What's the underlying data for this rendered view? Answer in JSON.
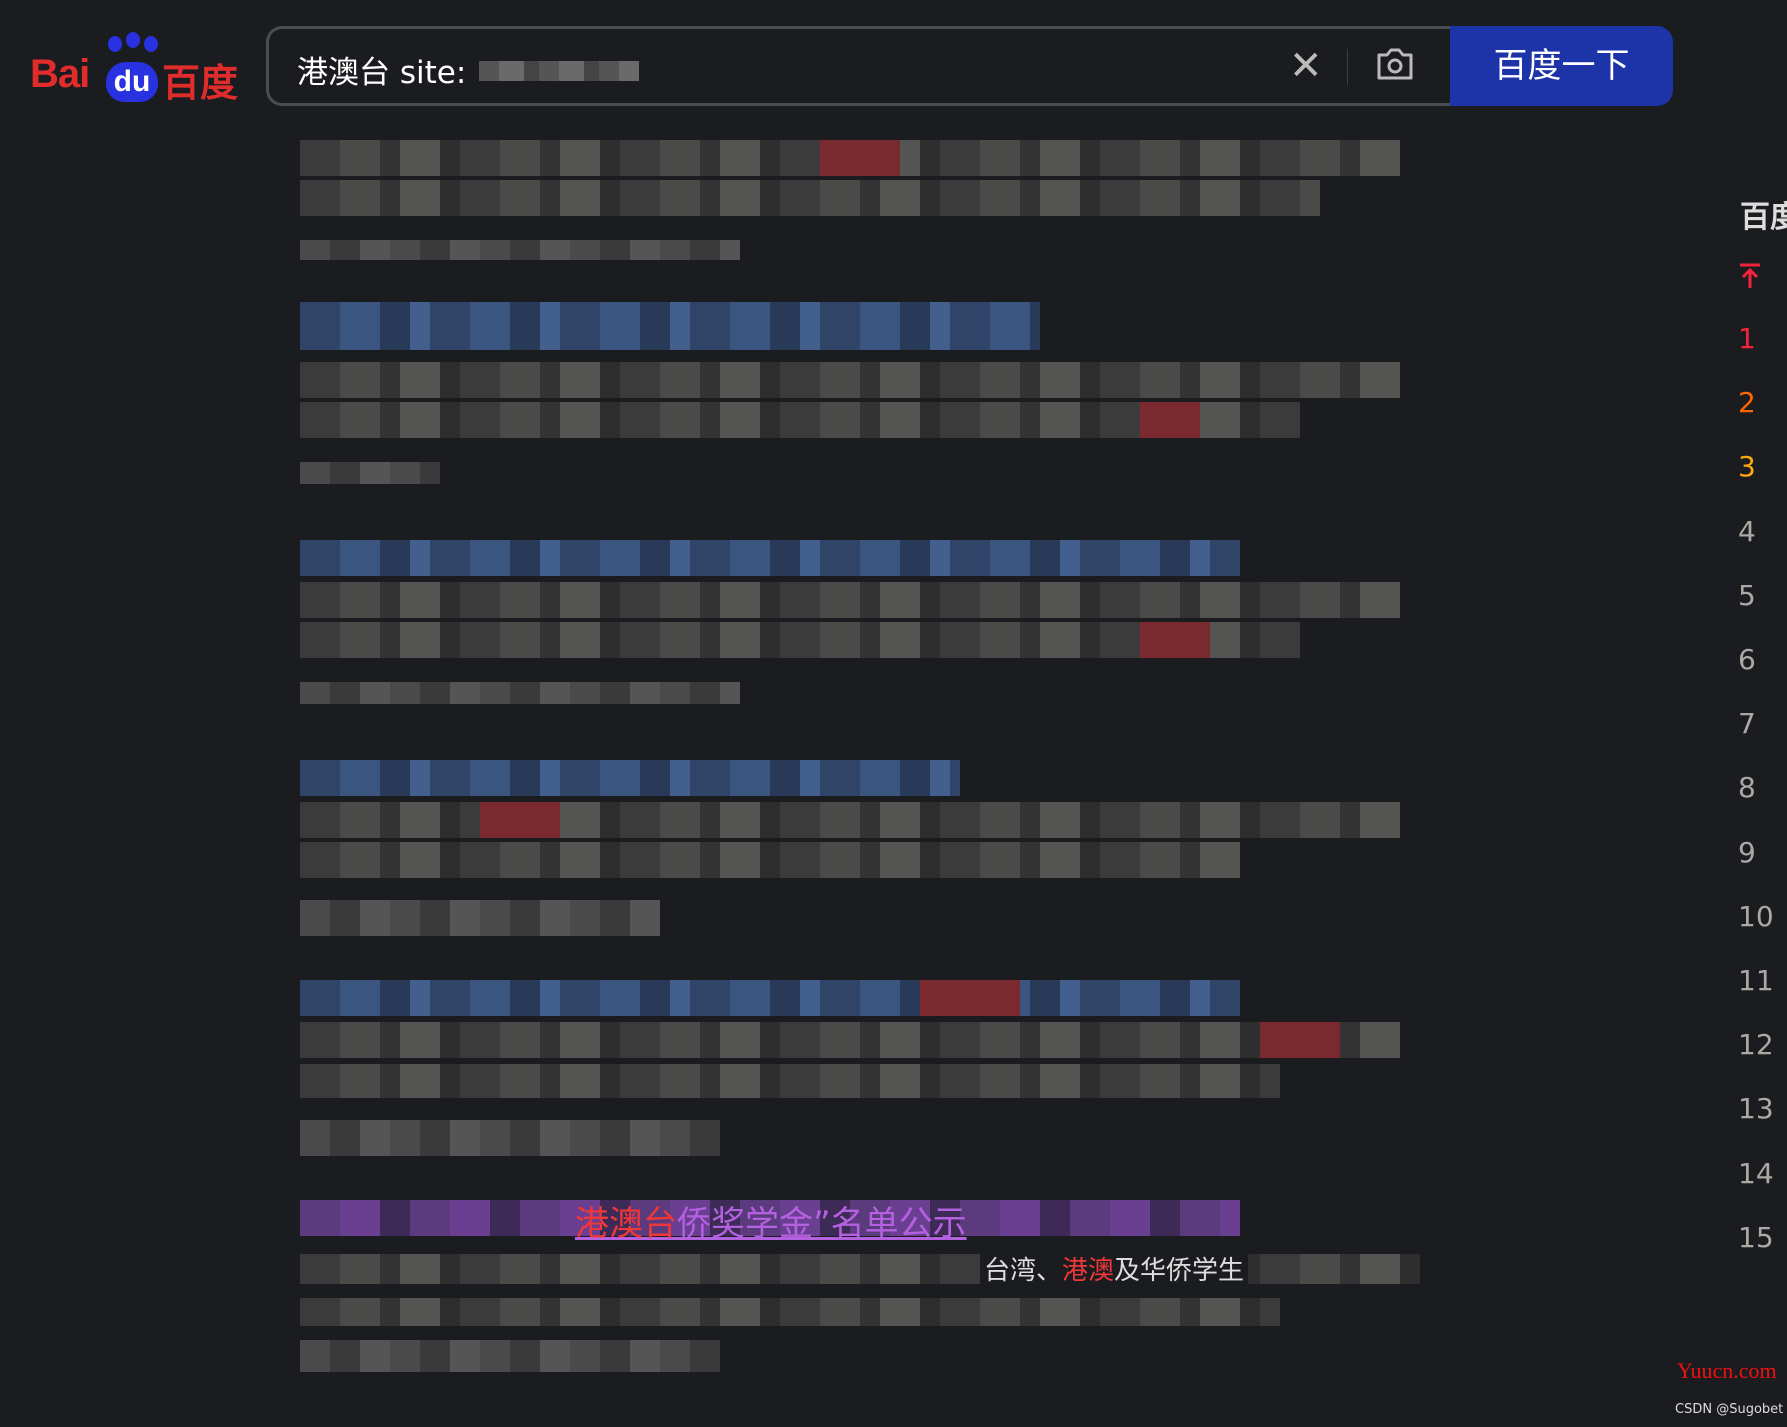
{
  "logo": {
    "text": "Bai du 百度"
  },
  "search": {
    "query": "港澳台 site:",
    "clear_icon": "close-icon",
    "camera_icon": "camera-icon",
    "button_label": "百度一下"
  },
  "results": [
    {
      "title": "",
      "description": "",
      "url": ""
    },
    {
      "title": "",
      "description": "",
      "url": ""
    },
    {
      "title": "",
      "description": "",
      "url": ""
    },
    {
      "title": "",
      "description": "",
      "url": ""
    },
    {
      "title": "",
      "description": "",
      "url": ""
    },
    {
      "title_highlight": "港澳台",
      "title_rest": "侨奖学金”名单公示",
      "desc_pre": "台湾、",
      "desc_highlight": "港澳",
      "desc_post": "及华侨学生"
    }
  ],
  "sidebar": {
    "heading": "百度",
    "pin_icon": "pin-top-icon",
    "ranks": [
      "1",
      "2",
      "3",
      "4",
      "5",
      "6",
      "7",
      "8",
      "9",
      "10",
      "11",
      "12",
      "13",
      "14",
      "15"
    ],
    "rank_colors": {
      "1": "#f3233d",
      "2": "#ff6600",
      "3": "#faa90e",
      "default": "#aaa9a4"
    }
  },
  "watermark": "Yuucn.com",
  "credit": "CSDN @Sugobet"
}
